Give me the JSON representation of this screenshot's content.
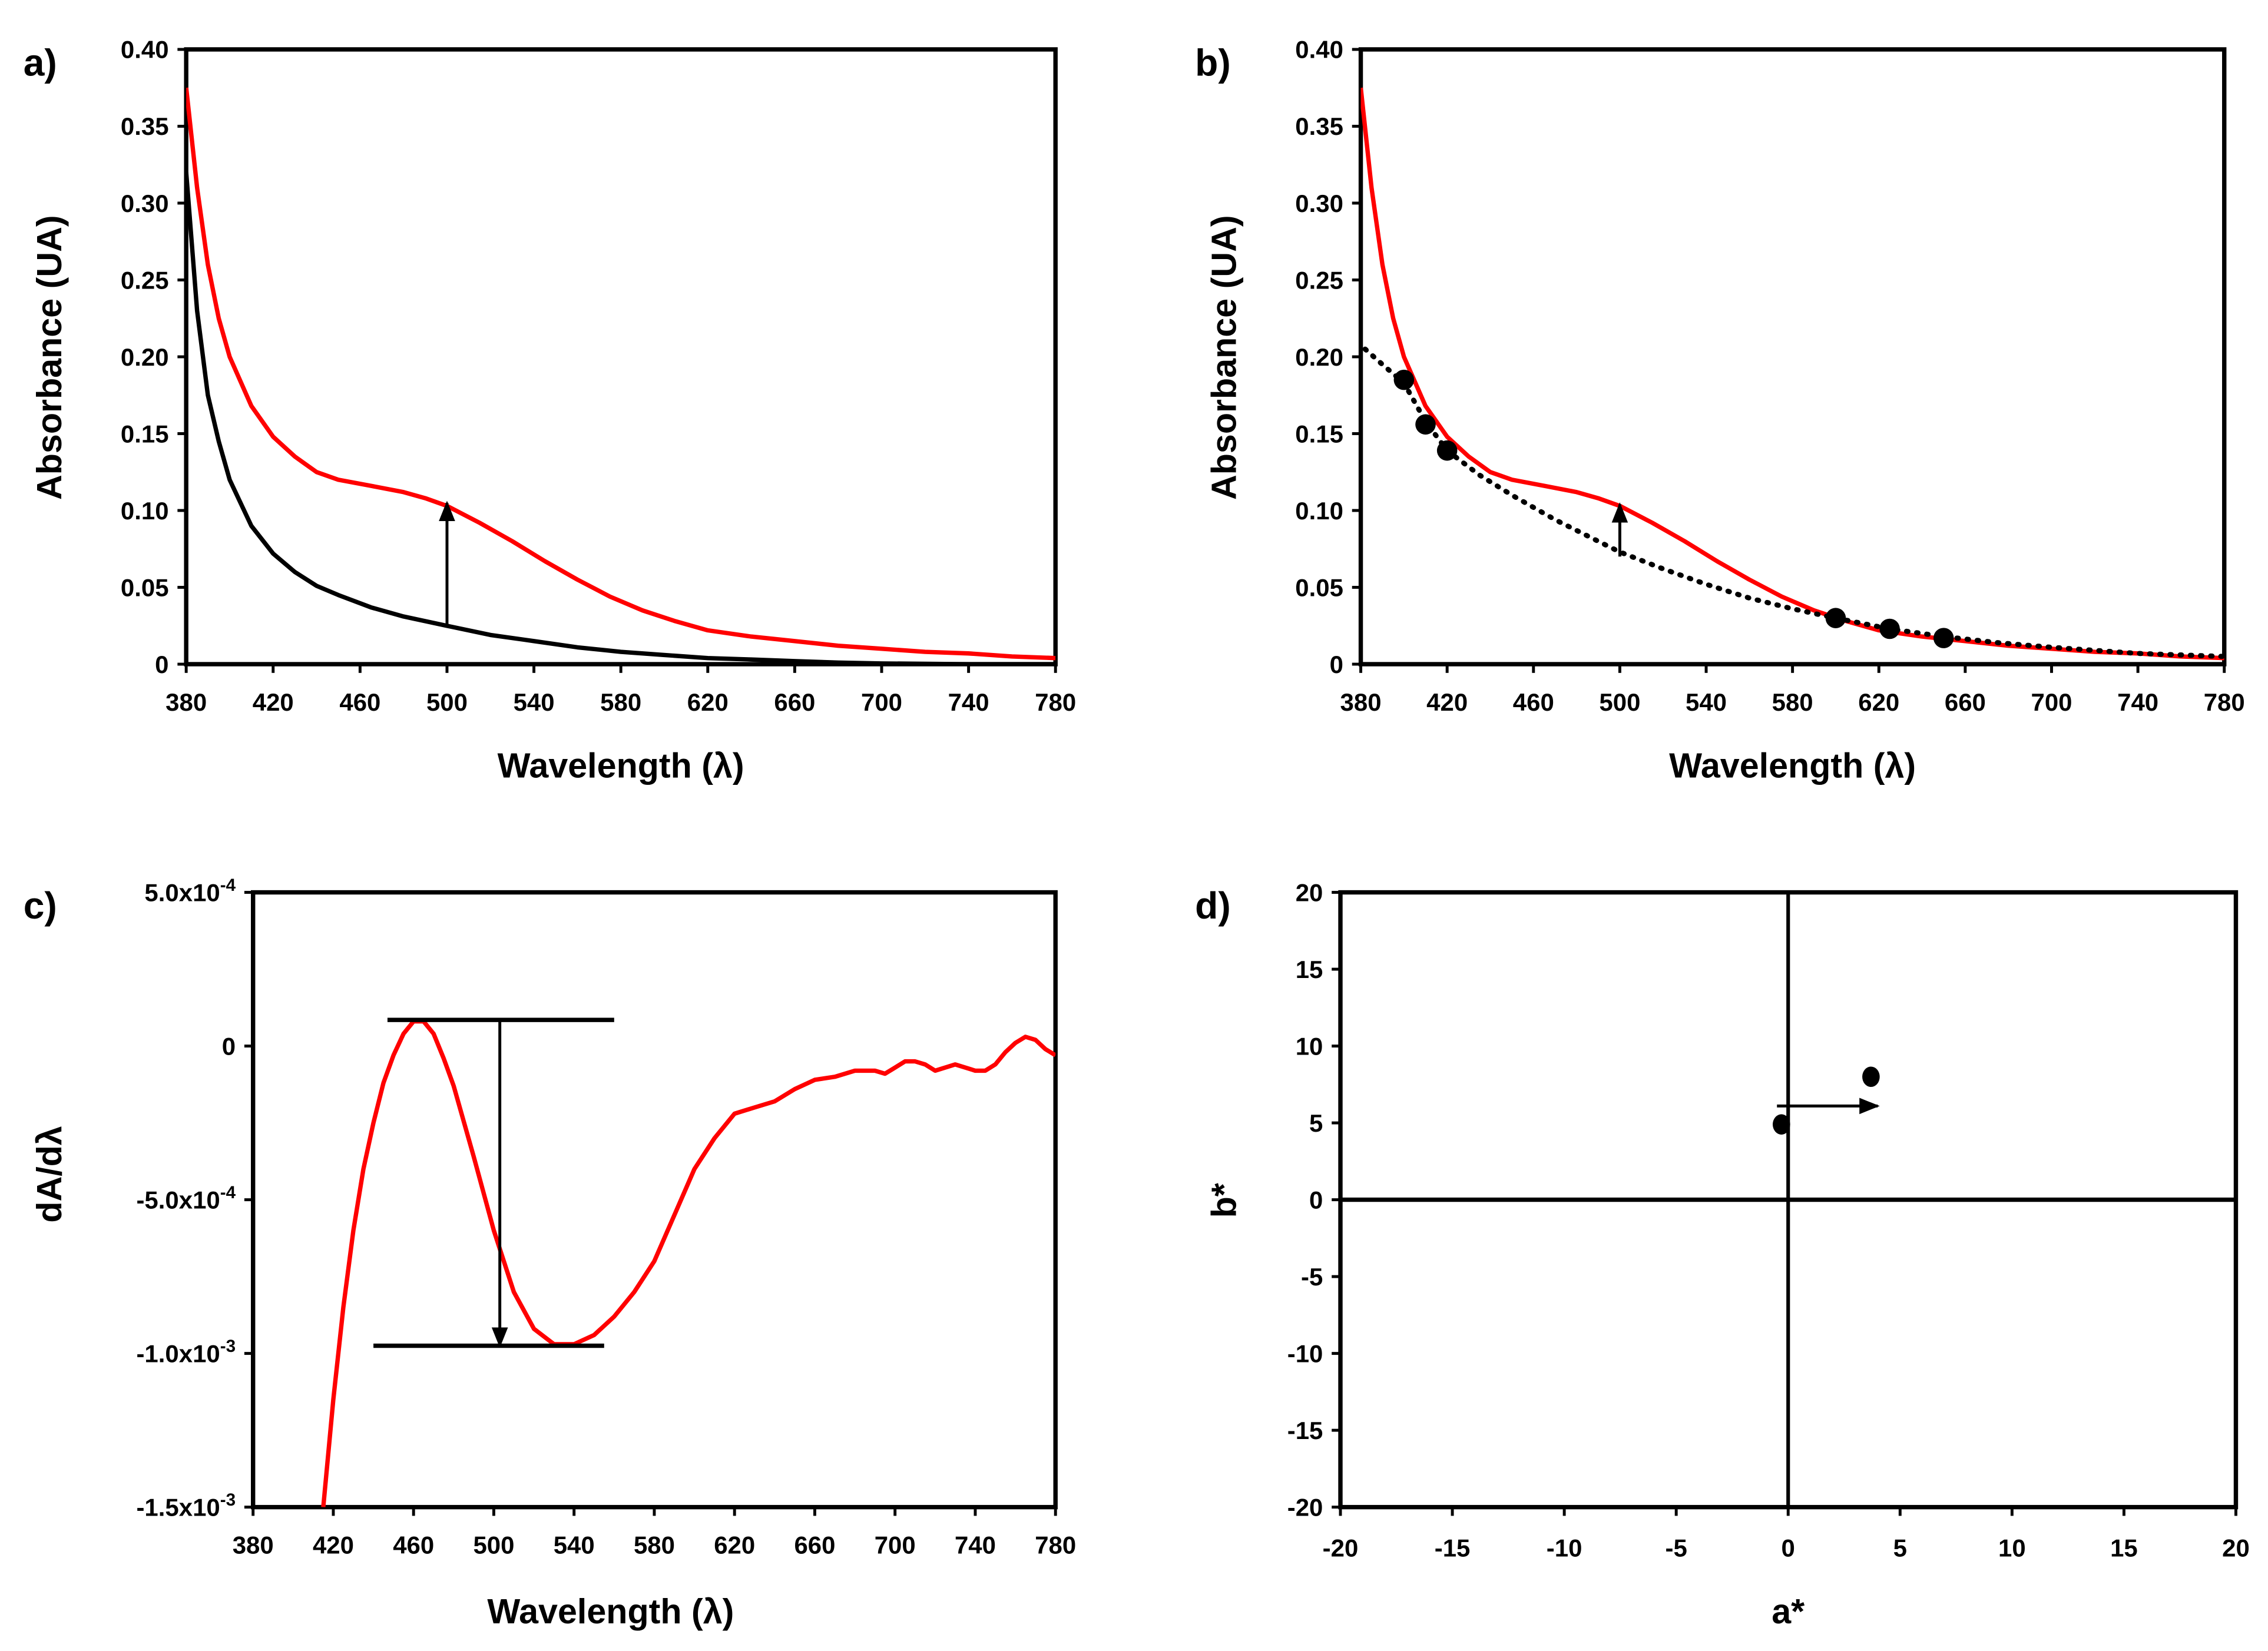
{
  "colors": {
    "red": "#ff0000",
    "black": "#000000"
  },
  "chart_data": [
    {
      "panel_label": "a)",
      "type": "line",
      "xlabel": "Wavelength (λ)",
      "ylabel": "Absorbance (UA)",
      "xlim": [
        380,
        780
      ],
      "ylim": [
        0,
        0.4
      ],
      "xticks": [
        "380",
        "420",
        "460",
        "500",
        "540",
        "580",
        "620",
        "660",
        "700",
        "740",
        "780"
      ],
      "yticks": [
        "0",
        "0.05",
        "0.10",
        "0.15",
        "0.20",
        "0.25",
        "0.30",
        "0.35",
        "0.40"
      ],
      "series": [
        {
          "name": "red",
          "color": "#ff0000",
          "style": "solid",
          "x": [
            380,
            385,
            390,
            395,
            400,
            410,
            420,
            430,
            440,
            450,
            465,
            480,
            490,
            500,
            515,
            530,
            545,
            560,
            575,
            590,
            605,
            620,
            640,
            660,
            680,
            700,
            720,
            740,
            760,
            780
          ],
          "y": [
            0.375,
            0.31,
            0.26,
            0.225,
            0.2,
            0.168,
            0.148,
            0.135,
            0.125,
            0.12,
            0.116,
            0.112,
            0.108,
            0.103,
            0.092,
            0.08,
            0.067,
            0.055,
            0.044,
            0.035,
            0.028,
            0.022,
            0.018,
            0.015,
            0.012,
            0.01,
            0.008,
            0.007,
            0.005,
            0.004
          ]
        },
        {
          "name": "black",
          "color": "#000000",
          "style": "solid",
          "x": [
            380,
            385,
            390,
            395,
            400,
            410,
            420,
            430,
            440,
            450,
            465,
            480,
            500,
            520,
            540,
            560,
            580,
            600,
            620,
            640,
            660,
            680,
            700,
            740,
            780
          ],
          "y": [
            0.32,
            0.23,
            0.175,
            0.145,
            0.12,
            0.09,
            0.072,
            0.06,
            0.051,
            0.045,
            0.037,
            0.031,
            0.025,
            0.019,
            0.015,
            0.011,
            0.008,
            0.006,
            0.004,
            0.003,
            0.002,
            0.001,
            0.0005,
            0,
            0
          ]
        }
      ],
      "arrows": [
        {
          "x1": 500,
          "y1": 0.025,
          "x2": 500,
          "y2": 0.105
        }
      ]
    },
    {
      "panel_label": "b)",
      "type": "line",
      "xlabel": "Wavelength (λ)",
      "ylabel": "Absorbance (UA)",
      "xlim": [
        380,
        780
      ],
      "ylim": [
        0,
        0.4
      ],
      "xticks": [
        "380",
        "420",
        "460",
        "500",
        "540",
        "580",
        "620",
        "660",
        "700",
        "740",
        "780"
      ],
      "yticks": [
        "0",
        "0.05",
        "0.10",
        "0.15",
        "0.20",
        "0.25",
        "0.30",
        "0.35",
        "0.40"
      ],
      "series": [
        {
          "name": "red",
          "color": "#ff0000",
          "style": "solid",
          "x": [
            380,
            385,
            390,
            395,
            400,
            410,
            420,
            430,
            440,
            450,
            465,
            480,
            490,
            500,
            515,
            530,
            545,
            560,
            575,
            590,
            605,
            620,
            640,
            660,
            680,
            700,
            720,
            740,
            760,
            780
          ],
          "y": [
            0.375,
            0.31,
            0.26,
            0.225,
            0.2,
            0.168,
            0.148,
            0.135,
            0.125,
            0.12,
            0.116,
            0.112,
            0.108,
            0.103,
            0.092,
            0.08,
            0.067,
            0.055,
            0.044,
            0.035,
            0.028,
            0.022,
            0.018,
            0.015,
            0.012,
            0.01,
            0.008,
            0.007,
            0.005,
            0.004
          ]
        },
        {
          "name": "fit",
          "color": "#000000",
          "style": "dotted",
          "x": [
            382,
            390,
            400,
            410,
            420,
            435,
            450,
            470,
            490,
            500,
            520,
            540,
            560,
            580,
            600,
            625,
            650,
            675,
            700,
            740,
            780
          ],
          "y": [
            0.205,
            0.195,
            0.183,
            0.158,
            0.139,
            0.123,
            0.11,
            0.094,
            0.08,
            0.073,
            0.062,
            0.052,
            0.043,
            0.036,
            0.03,
            0.023,
            0.018,
            0.014,
            0.011,
            0.007,
            0.005
          ]
        },
        {
          "name": "points",
          "color": "#000000",
          "style": "markers",
          "x": [
            400,
            410,
            420,
            600,
            625,
            650
          ],
          "y": [
            0.185,
            0.156,
            0.139,
            0.03,
            0.023,
            0.017
          ]
        }
      ],
      "arrows": [
        {
          "x1": 500,
          "y1": 0.07,
          "x2": 500,
          "y2": 0.104
        }
      ]
    },
    {
      "panel_label": "c)",
      "type": "line",
      "xlabel": "Wavelength (λ)",
      "ylabel": "dA/dλ",
      "xlim": [
        380,
        780
      ],
      "ylim": [
        -0.0015,
        0.0005
      ],
      "xticks": [
        "380",
        "420",
        "460",
        "500",
        "540",
        "580",
        "620",
        "660",
        "700",
        "740",
        "780"
      ],
      "yticks": [
        {
          "m": "-1.5x10",
          "e": "-3",
          "v": -0.0015
        },
        {
          "m": "-1.0x10",
          "e": "-3",
          "v": -0.001
        },
        {
          "m": "-5.0x10",
          "e": "-4",
          "v": -0.0005
        },
        {
          "m": "0",
          "e": "",
          "v": 0
        },
        {
          "m": "5.0x10",
          "e": "-4",
          "v": 0.0005
        }
      ],
      "series": [
        {
          "name": "derivative",
          "color": "#ff0000",
          "style": "solid",
          "x": [
            415,
            420,
            425,
            430,
            435,
            440,
            445,
            450,
            455,
            460,
            465,
            470,
            475,
            480,
            490,
            500,
            510,
            520,
            530,
            540,
            550,
            560,
            570,
            580,
            590,
            600,
            610,
            620,
            630,
            640,
            650,
            660,
            670,
            680,
            690,
            695,
            700,
            705,
            710,
            715,
            720,
            730,
            740,
            745,
            750,
            755,
            760,
            765,
            770,
            775,
            780
          ],
          "y": [
            -0.0015,
            -0.00115,
            -0.00085,
            -0.0006,
            -0.0004,
            -0.00025,
            -0.00012,
            -3e-05,
            4e-05,
            8e-05,
            8e-05,
            4e-05,
            -4e-05,
            -0.00013,
            -0.00036,
            -0.0006,
            -0.0008,
            -0.00092,
            -0.00097,
            -0.00097,
            -0.00094,
            -0.00088,
            -0.0008,
            -0.0007,
            -0.00055,
            -0.0004,
            -0.0003,
            -0.00022,
            -0.0002,
            -0.00018,
            -0.00014,
            -0.00011,
            -0.0001,
            -8e-05,
            -8e-05,
            -9e-05,
            -7e-05,
            -5e-05,
            -5e-05,
            -6e-05,
            -8e-05,
            -6e-05,
            -8e-05,
            -8e-05,
            -6e-05,
            -2e-05,
            1e-05,
            3e-05,
            2e-05,
            -1e-05,
            -3e-05
          ]
        }
      ],
      "hlines": [
        {
          "y": 8.5e-05,
          "x1": 447,
          "x2": 560
        },
        {
          "y": -0.000975,
          "x1": 440,
          "x2": 555
        }
      ],
      "arrows": [
        {
          "x1": 503,
          "y1": 8.5e-05,
          "x2": 503,
          "y2": -0.000975
        }
      ]
    },
    {
      "panel_label": "d)",
      "type": "scatter",
      "xlabel": "a*",
      "ylabel": "b*",
      "xlim": [
        -20,
        20
      ],
      "ylim": [
        -20,
        20
      ],
      "xticks": [
        "-20",
        "-15",
        "-10",
        "-5",
        "0",
        "5",
        "10",
        "15",
        "20"
      ],
      "yticks": [
        "-20",
        "-15",
        "-10",
        "-5",
        "0",
        "5",
        "10",
        "15",
        "20"
      ],
      "points": [
        {
          "x": -0.3,
          "y": 4.9
        },
        {
          "x": 3.7,
          "y": 8.0
        }
      ],
      "arrows": [
        {
          "x1": -0.5,
          "y1": 6.1,
          "x2": 4.0,
          "y2": 6.1
        }
      ]
    }
  ]
}
